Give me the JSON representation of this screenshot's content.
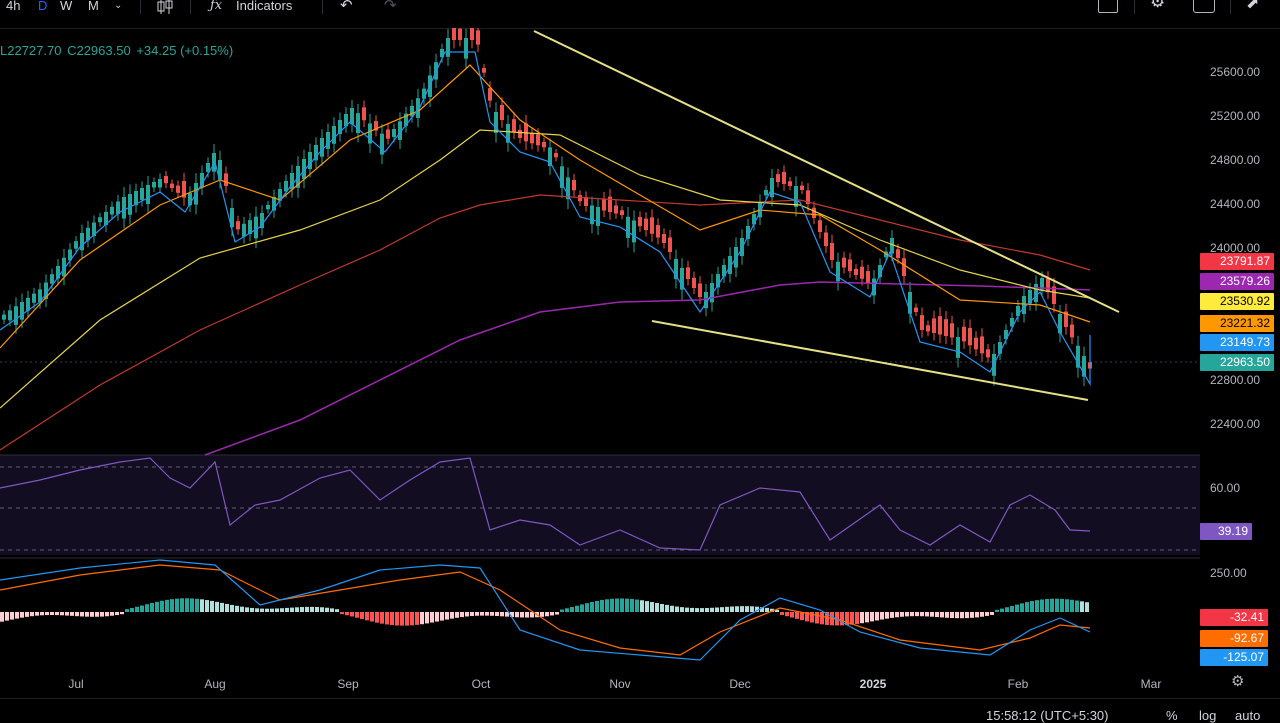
{
  "toolbar": {
    "intervals": [
      "4h",
      "D",
      "W",
      "M"
    ],
    "active_interval": "D",
    "indicators_label": "Indicators"
  },
  "legend": {
    "low": "L22727.70",
    "close": "C22963.50",
    "change": "+34.25 (+0.15%)"
  },
  "price_axis": [
    "25600.00",
    "25200.00",
    "24800.00",
    "24400.00",
    "24000.00",
    "22800.00",
    "22400.00"
  ],
  "price_tags": [
    {
      "label": "23791.87",
      "bg": "#f23645",
      "fg": "#ffffff"
    },
    {
      "label": "23579.26",
      "bg": "#9c27b0",
      "fg": "#ffffff"
    },
    {
      "label": "23530.92",
      "bg": "#ffeb3b",
      "fg": "#000000"
    },
    {
      "label": "23221.32",
      "bg": "#ff9800",
      "fg": "#000000"
    },
    {
      "label": "23149.73",
      "bg": "#2196f3",
      "fg": "#ffffff"
    },
    {
      "label": "22963.50",
      "bg": "#26a69a",
      "fg": "#ffffff"
    }
  ],
  "rsi": {
    "level_label": "60.00",
    "value": "39.19",
    "value_bg": "#7e57c2"
  },
  "macd": {
    "level_label": "250.00",
    "tags": [
      {
        "label": "-32.41",
        "bg": "#f23645",
        "fg": "#ffffff"
      },
      {
        "label": "-92.67",
        "bg": "#ff6d00",
        "fg": "#ffffff"
      },
      {
        "label": "-125.07",
        "bg": "#2196f3",
        "fg": "#ffffff"
      }
    ]
  },
  "time_axis": [
    "Jul",
    "Aug",
    "Sep",
    "Oct",
    "Nov",
    "Dec",
    "2025",
    "Feb",
    "Mar"
  ],
  "status": {
    "clock": "15:58:12 (UTC+5:30)",
    "percent": "%",
    "log": "log",
    "auto": "auto"
  },
  "colors": {
    "up": "#26a69a",
    "down": "#ef5350",
    "trendline": "#e6e085"
  }
}
